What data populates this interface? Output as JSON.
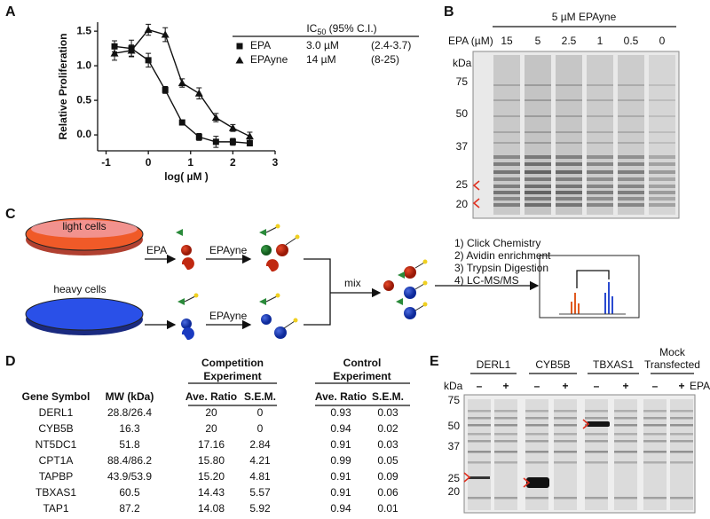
{
  "panel_labels": [
    "A",
    "B",
    "C",
    "D",
    "E"
  ],
  "chart_data": {
    "type": "scatter",
    "x_label": "log( µM )",
    "y_label": "Relative Proliferation",
    "x": [
      -0.8,
      -0.4,
      0,
      0.4,
      0.8,
      1.2,
      1.6,
      2,
      2.4
    ],
    "xlim": [
      -1.2,
      3
    ],
    "ylim": [
      -0.23,
      1.63
    ],
    "xticks": [
      -1,
      0,
      1,
      2,
      3
    ],
    "yticks": [
      {
        "value": 0,
        "label": "0.0"
      },
      0.5,
      {
        "value": 1,
        "label": "1.0"
      },
      1.5
    ],
    "legend_title": {
      "main": "IC",
      "sub": "50",
      "rest": " (95% C.I.)"
    },
    "series": [
      {
        "name": "EPA",
        "marker": "square",
        "color": "#111111",
        "ic50": "3.0 µM",
        "ci": "(2.4-3.7)",
        "values": [
          1.28,
          1.25,
          1.08,
          0.65,
          0.18,
          -0.03,
          -0.1,
          -0.1,
          -0.12
        ],
        "errors": [
          0.08,
          0.12,
          0.1,
          0.05,
          0.03,
          0.05,
          0.08,
          0.05,
          0.04
        ]
      },
      {
        "name": "EPAyne",
        "marker": "triangle",
        "color": "#111111",
        "ic50": "14 µM",
        "ci": "(8-25)",
        "values": [
          1.18,
          1.22,
          1.52,
          1.45,
          0.75,
          0.6,
          0.25,
          0.1,
          -0.02
        ],
        "errors": [
          0.1,
          0.08,
          0.08,
          0.1,
          0.06,
          0.08,
          0.06,
          0.05,
          0.06
        ]
      }
    ]
  },
  "panel_b": {
    "title": "5 µM EPAyne",
    "lane_axis": "EPA (µM)",
    "lanes": [
      "15",
      "5",
      "2.5",
      "1",
      "0.5",
      "0"
    ],
    "kda": "kDa",
    "markers": [
      "75",
      "50",
      "37",
      "25",
      "20"
    ]
  },
  "panel_c": {
    "light": "light cells",
    "heavy": "heavy cells",
    "step_epa": "EPA",
    "step_epayne_light": "EPAyne",
    "step_epayne_heavy": "EPAyne",
    "mix": "mix",
    "steps": [
      "1) Click Chemistry",
      "2) Avidin enrichment",
      "3) Trypsin Digestion",
      "4) LC-MS/MS"
    ]
  },
  "panel_d": {
    "groups": [
      {
        "lines": [
          "Competition",
          "Experiment"
        ]
      },
      {
        "lines": [
          "Control",
          "Experiment"
        ]
      }
    ],
    "columns": [
      "Gene Symbol",
      "MW (kDa)",
      "Ave. Ratio",
      "S.E.M.",
      "Ave. Ratio",
      "S.E.M."
    ],
    "rows": [
      [
        "DERL1",
        "28.8/26.4",
        "20",
        "0",
        "0.93",
        "0.03"
      ],
      [
        "CYB5B",
        "16.3",
        "20",
        "0",
        "0.94",
        "0.02"
      ],
      [
        "NT5DC1",
        "51.8",
        "17.16",
        "2.84",
        "0.91",
        "0.03"
      ],
      [
        "CPT1A",
        "88.4/86.2",
        "15.80",
        "4.21",
        "0.99",
        "0.05"
      ],
      [
        "TAPBP",
        "43.9/53.9",
        "15.20",
        "4.81",
        "0.91",
        "0.09"
      ],
      [
        "TBXAS1",
        "60.5",
        "14.43",
        "5.57",
        "0.91",
        "0.06"
      ],
      [
        "TAP1",
        "87.2",
        "14.08",
        "5.92",
        "0.94",
        "0.01"
      ]
    ]
  },
  "panel_e": {
    "groups": [
      {
        "lines": [
          "DERL1"
        ]
      },
      {
        "lines": [
          "CYB5B"
        ]
      },
      {
        "lines": [
          "TBXAS1"
        ]
      },
      {
        "lines": [
          "Mock",
          "Transfected"
        ]
      }
    ],
    "kda": "kDa",
    "treatment": "EPA",
    "signs": [
      "–",
      "+",
      "–",
      "+",
      "–",
      "+",
      "–",
      "+"
    ],
    "markers": [
      "75",
      "50",
      "37",
      "25",
      "20"
    ]
  }
}
